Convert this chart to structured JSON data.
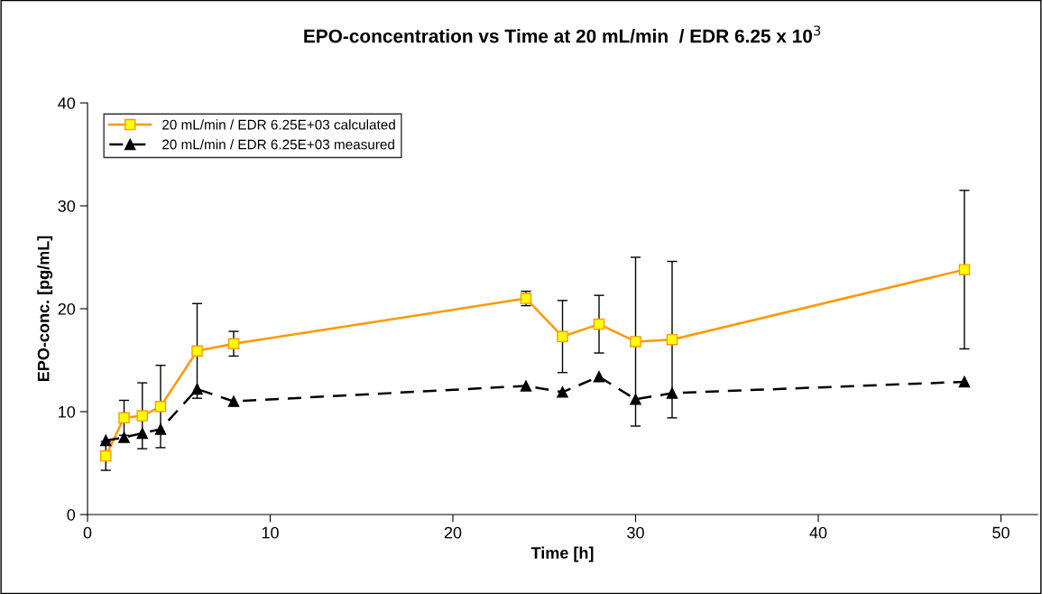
{
  "chart_data": {
    "type": "line",
    "title": "EPO-concentration vs Time at 20 mL/min  / EDR 6.25 x 10$^{3}$",
    "xlabel": "Time [h]",
    "ylabel": "EPO-conc. [pg/mL]",
    "x": [
      1,
      2,
      3,
      4,
      6,
      8,
      24,
      26,
      28,
      30,
      32,
      48
    ],
    "series": [
      {
        "name": "20 mL/min / EDR 6.25E+03 calculated",
        "color": "#ff9900",
        "marker": "square",
        "line_style": "solid",
        "values": [
          5.7,
          9.4,
          9.6,
          10.5,
          15.9,
          16.6,
          21.0,
          17.3,
          18.5,
          16.8,
          17.0,
          23.8
        ],
        "errors": [
          1.4,
          1.7,
          3.2,
          4.0,
          4.6,
          1.2,
          0.7,
          3.5,
          2.8,
          8.2,
          7.6,
          7.7
        ]
      },
      {
        "name": "20 mL/min / EDR 6.25E+03 measured",
        "color": "#000000",
        "marker": "triangle",
        "line_style": "dashed",
        "values": [
          7.2,
          7.5,
          7.9,
          8.3,
          12.2,
          11.0,
          12.5,
          11.9,
          13.4,
          11.2,
          11.8,
          12.9
        ]
      }
    ],
    "xlim": [
      0,
      52
    ],
    "xticks": [
      0,
      10,
      20,
      30,
      40,
      50
    ],
    "ylim": [
      0,
      40
    ],
    "yticks": [
      0,
      10,
      20,
      30,
      40
    ],
    "grid": false,
    "legend": "top left"
  }
}
